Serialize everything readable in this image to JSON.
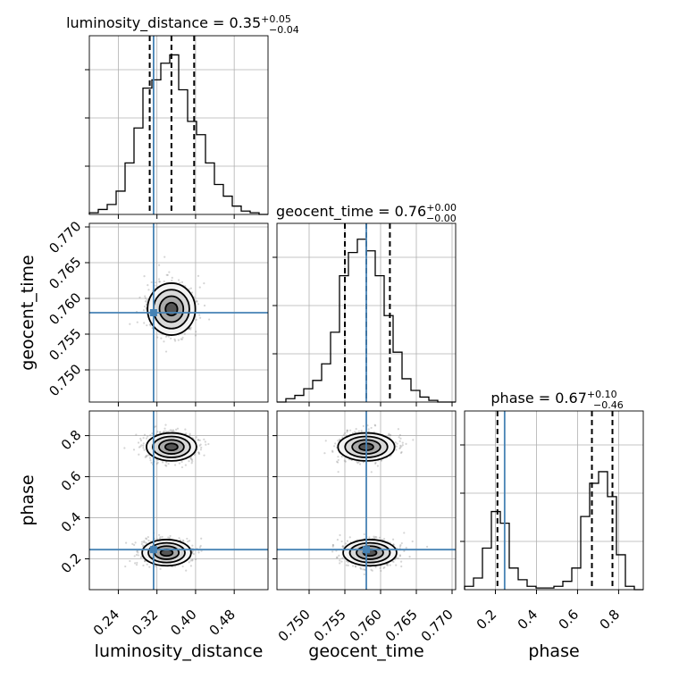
{
  "chart_data": {
    "type": "corner",
    "parameters": [
      "luminosity_distance",
      "geocent_time",
      "phase"
    ],
    "titles": [
      {
        "base": "luminosity_distance = 0.35",
        "sup": "+0.05",
        "sub": "−0.04"
      },
      {
        "base": "geocent_time = 0.76",
        "sup": "+0.00",
        "sub": "−0.00"
      },
      {
        "base": "phase = 0.67",
        "sup": "+0.10",
        "sub": "−0.46"
      }
    ],
    "ranges": [
      [
        0.18,
        0.55
      ],
      [
        0.7455,
        0.7705
      ],
      [
        0.05,
        0.92
      ]
    ],
    "tick_labels": [
      [
        "0.24",
        "0.32",
        "0.40",
        "0.48"
      ],
      [
        "0.750",
        "0.755",
        "0.760",
        "0.765",
        "0.770"
      ],
      [
        "0.2",
        "0.4",
        "0.6",
        "0.8"
      ]
    ],
    "tick_values": [
      [
        0.24,
        0.32,
        0.4,
        0.48
      ],
      [
        0.75,
        0.755,
        0.76,
        0.765,
        0.77
      ],
      [
        0.2,
        0.4,
        0.6,
        0.8
      ]
    ],
    "truths": [
      0.313,
      0.758,
      0.245
    ],
    "quantiles": [
      [
        0.305,
        0.35,
        0.397
      ],
      [
        0.755,
        0.758,
        0.7613
      ],
      [
        0.21,
        0.67,
        0.77
      ]
    ],
    "histograms": [
      {
        "edges_start": 0.18,
        "bin_width": 0.0185,
        "counts": [
          0.01,
          0.03,
          0.06,
          0.14,
          0.31,
          0.52,
          0.76,
          0.81,
          0.91,
          0.96,
          0.75,
          0.56,
          0.48,
          0.31,
          0.18,
          0.11,
          0.05,
          0.02,
          0.01,
          0.0
        ]
      },
      {
        "edges_start": 0.7455,
        "bin_width": 0.00125,
        "counts": [
          0.0,
          0.02,
          0.04,
          0.08,
          0.13,
          0.23,
          0.42,
          0.76,
          0.9,
          0.98,
          0.91,
          0.76,
          0.52,
          0.3,
          0.14,
          0.07,
          0.03,
          0.01,
          0.0,
          0.0
        ]
      },
      {
        "edges_start": 0.05,
        "bin_width": 0.0435,
        "counts": [
          0.02,
          0.07,
          0.25,
          0.47,
          0.4,
          0.13,
          0.06,
          0.02,
          0.01,
          0.01,
          0.02,
          0.05,
          0.13,
          0.44,
          0.64,
          0.71,
          0.56,
          0.21,
          0.02,
          0.0
        ]
      }
    ],
    "pairs": [
      {
        "x": 0,
        "y": 1,
        "modes": [
          {
            "cx": 0.35,
            "cy": 0.7585,
            "sx": 0.045,
            "sy": 0.0033
          }
        ]
      },
      {
        "x": 0,
        "y": 2,
        "modes": [
          {
            "cx": 0.35,
            "cy": 0.745,
            "sx": 0.047,
            "sy": 0.062
          },
          {
            "cx": 0.34,
            "cy": 0.23,
            "sx": 0.046,
            "sy": 0.058
          }
        ]
      },
      {
        "x": 1,
        "y": 2,
        "modes": [
          {
            "cx": 0.758,
            "cy": 0.745,
            "sx": 0.0036,
            "sy": 0.062
          },
          {
            "cx": 0.7585,
            "cy": 0.23,
            "sx": 0.0034,
            "sy": 0.058
          }
        ]
      }
    ],
    "contour_levels_sigma": [
      0.5,
      1.0,
      1.5,
      2.0
    ],
    "grid": true,
    "colors": {
      "truth": "#4682b4",
      "contour": "#000000",
      "grid": "#b0b0b0"
    }
  }
}
